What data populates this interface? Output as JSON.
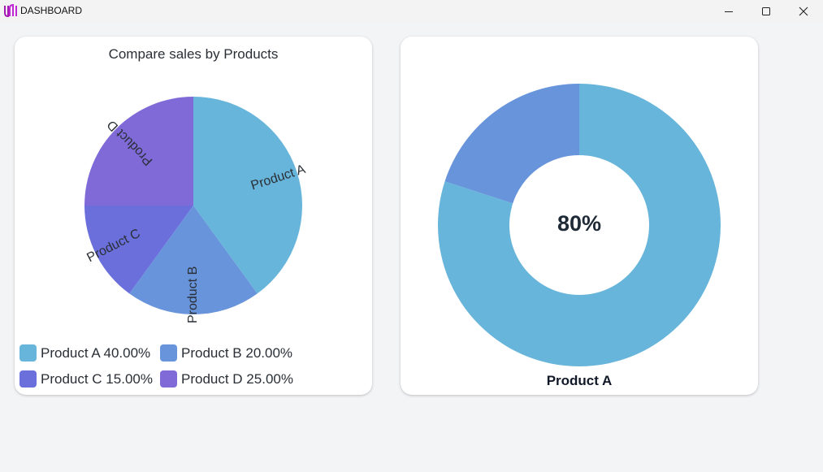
{
  "window": {
    "title": "DASHBOARD",
    "controls": {
      "minimize": "minimize-icon",
      "maximize": "maximize-icon",
      "close": "close-icon"
    }
  },
  "colors": {
    "product_a": "#68b5db",
    "product_b": "#6894db",
    "product_c": "#6a6fdc",
    "product_d": "#7f6ad8"
  },
  "pie_card": {
    "title": "Compare sales by Products",
    "legend": [
      {
        "label": "Product A 40.00%"
      },
      {
        "label": "Product B 20.00%"
      },
      {
        "label": "Product C 15.00%"
      },
      {
        "label": "Product D 25.00%"
      }
    ]
  },
  "donut_card": {
    "center_value": "80%",
    "caption": "Product A"
  },
  "chart_data": [
    {
      "type": "pie",
      "title": "Compare sales by Products",
      "categories": [
        "Product A",
        "Product B",
        "Product C",
        "Product D"
      ],
      "values": [
        40,
        20,
        15,
        25
      ],
      "unit": "%",
      "slice_labels": [
        "Product A",
        "Product B",
        "Product C",
        "Product D"
      ],
      "legend_position": "bottom"
    },
    {
      "type": "pie",
      "variant": "donut",
      "values": [
        80,
        20
      ],
      "center_label": "80%",
      "caption": "Product A"
    }
  ]
}
